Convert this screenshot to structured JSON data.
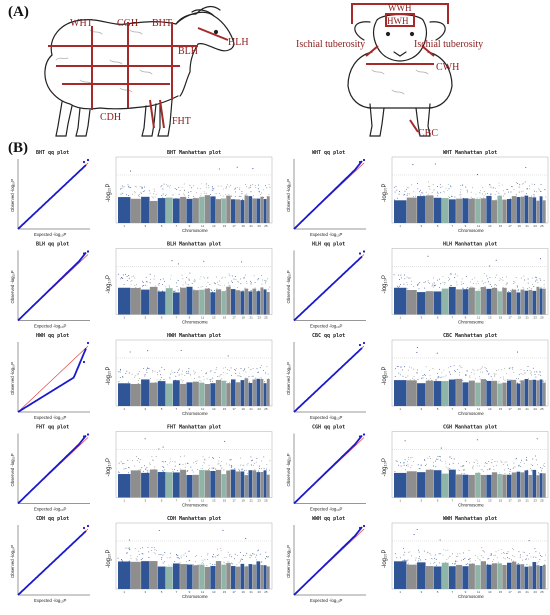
{
  "panel_a_label": "(A)",
  "panel_b_label": "(B)",
  "side_view_labels": {
    "wht": "WHT",
    "cgh": "CGH",
    "bht": "BHT",
    "hlh": "HLH",
    "blh": "BLH",
    "cdh": "CDH",
    "fht": "FHT"
  },
  "front_view_labels": {
    "wwh": "WWH",
    "hwh": "HWH",
    "ischial_left": "Ischial tuberosity",
    "ischial_right": "Ischial tuberosity",
    "cwh": "CWH",
    "cbc": "CBC"
  },
  "axis_text": {
    "qq_x": "Expected -log₁₀P",
    "qq_y": "Observed -log₁₀P",
    "man_x": "Chromosome",
    "man_y": "-log₁₀P"
  },
  "colors": {
    "label_red": "#8b1a1a",
    "man_blue": "#2f5597",
    "man_gray": "#8e8e8e",
    "man_teal": "#8fb4a8",
    "qq_blue": "#1a1acd"
  },
  "chromosome_ticks": [
    "1",
    "2",
    "3",
    "4",
    "5",
    "6",
    "7",
    "8",
    "9",
    "10",
    "11",
    "12",
    "13",
    "14",
    "15",
    "16",
    "17",
    "18",
    "19",
    "20",
    "21",
    "22",
    "23",
    "24",
    "25",
    "26"
  ],
  "rows": [
    {
      "left": {
        "qq_title": "BHT   qq plot",
        "man_title": "BHT Manhattan plot",
        "shape": 0
      },
      "right": {
        "qq_title": "WHT   qq plot",
        "man_title": "WHT Manhattan plot",
        "shape": 1
      }
    },
    {
      "left": {
        "qq_title": "BLH   qq plot",
        "man_title": "BLH Manhattan plot",
        "shape": 1
      },
      "right": {
        "qq_title": "HLH   qq plot",
        "man_title": "HLH Manhattan plot",
        "shape": 0
      }
    },
    {
      "left": {
        "qq_title": "HWH   qq plot",
        "man_title": "HWH Manhattan plot",
        "shape": 2
      },
      "right": {
        "qq_title": "CBC   qq plot",
        "man_title": "CBC Manhattan plot",
        "shape": 0
      }
    },
    {
      "left": {
        "qq_title": "FHT   qq plot",
        "man_title": "FHT Manhattan plot",
        "shape": 1
      },
      "right": {
        "qq_title": "CGH   qq plot",
        "man_title": "CGH Manhattan plot",
        "shape": 1
      }
    },
    {
      "left": {
        "qq_title": "CDH   qq plot",
        "man_title": "CDH Manhattan plot",
        "shape": 0
      },
      "right": {
        "qq_title": "WWH   qq plot",
        "man_title": "WWH Manhattan plot",
        "shape": 1
      }
    }
  ]
}
